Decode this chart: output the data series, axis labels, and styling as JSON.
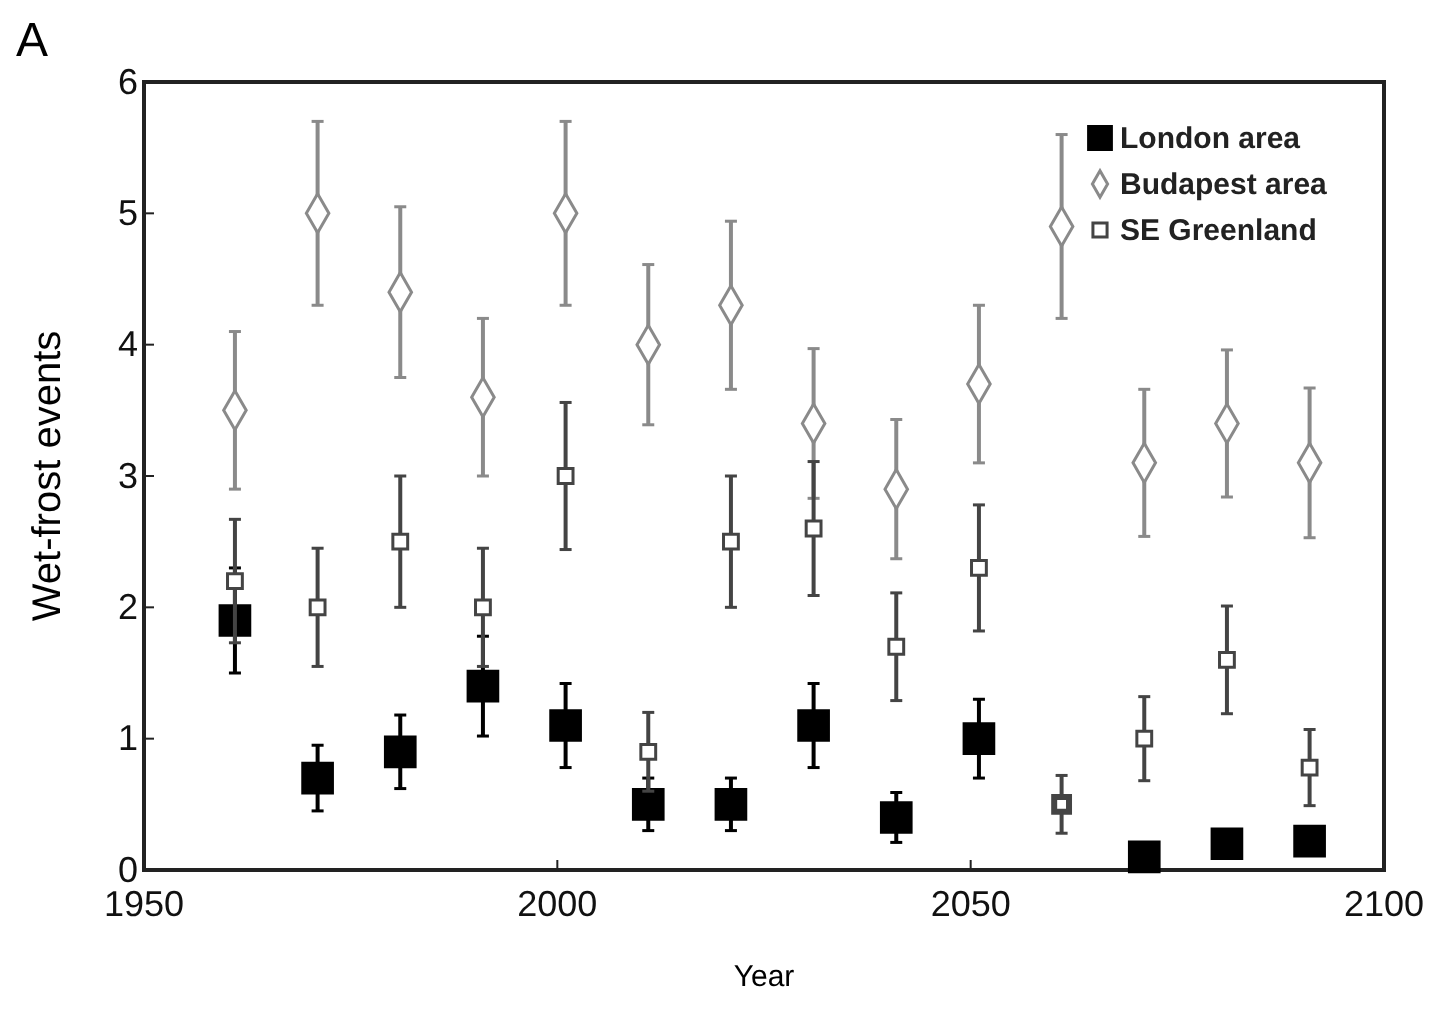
{
  "chart_data": {
    "type": "scatter",
    "xlabel": "Year",
    "ylabel": "Wet-frost events",
    "annotations": [
      "A"
    ],
    "x": [
      1961,
      1971,
      1981,
      1991,
      2001,
      2011,
      2021,
      2031,
      2041,
      2051,
      2061,
      2071,
      2081,
      2091
    ],
    "series": [
      {
        "name": "London area",
        "color": "#000000",
        "marker": "square",
        "values": [
          1.9,
          0.7,
          0.9,
          1.4,
          1.1,
          0.5,
          0.5,
          1.1,
          0.4,
          1.0,
          null,
          0.1,
          0.2,
          0.22
        ],
        "errors": [
          0.4,
          0.25,
          0.28,
          0.38,
          0.32,
          0.2,
          0.2,
          0.32,
          0.19,
          0.3,
          null,
          0.05,
          0.05,
          0.1
        ]
      },
      {
        "name": "Budapest area",
        "color": "#8a8a8a",
        "marker": "diamond",
        "values": [
          3.5,
          5.0,
          4.4,
          3.6,
          5.0,
          4.0,
          4.3,
          3.4,
          2.9,
          3.7,
          4.9,
          3.1,
          3.4,
          3.1
        ],
        "errors": [
          0.6,
          0.7,
          0.65,
          0.6,
          0.7,
          0.61,
          0.64,
          0.57,
          0.53,
          0.6,
          0.7,
          0.56,
          0.56,
          0.57
        ]
      },
      {
        "name": "SE Greenland",
        "color": "#444444",
        "marker": "square",
        "values": [
          2.2,
          2.0,
          2.5,
          2.0,
          3.0,
          0.9,
          2.5,
          2.6,
          1.7,
          2.3,
          0.5,
          1.0,
          1.6,
          0.78
        ],
        "errors": [
          0.47,
          0.45,
          0.5,
          0.45,
          0.56,
          0.3,
          0.5,
          0.51,
          0.41,
          0.48,
          0.22,
          0.32,
          0.41,
          0.29
        ]
      }
    ],
    "xlim": [
      1950,
      2100
    ],
    "xticks": [
      1950,
      2000,
      2050,
      2100
    ],
    "ylim": [
      0,
      6
    ],
    "yticks": [
      0,
      1,
      2,
      3,
      4,
      5,
      6
    ],
    "grid": false,
    "legend": "top right"
  }
}
